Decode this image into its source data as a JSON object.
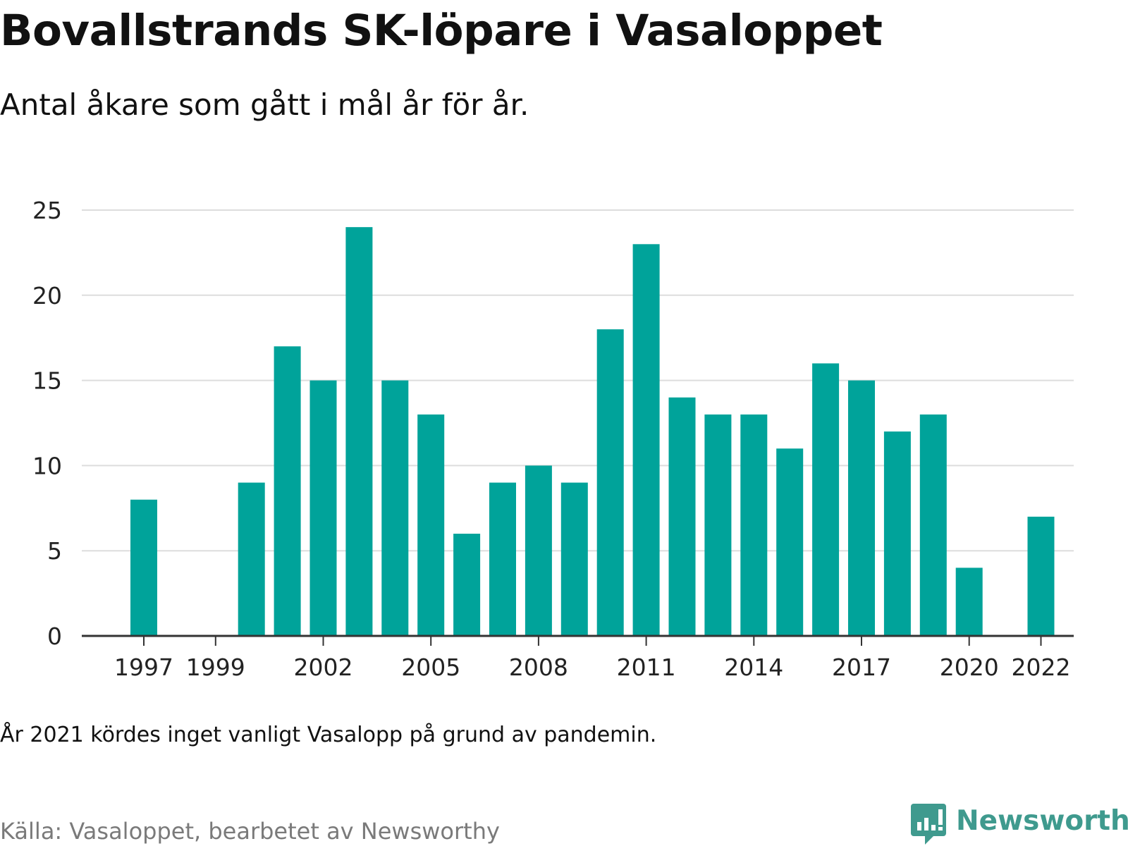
{
  "chart_data": {
    "type": "bar",
    "title": "Bovallstrands SK-löpare i Vasaloppet",
    "subtitle": "Antal åkare som gått i mål år för år.",
    "xlabel": "",
    "ylabel": "",
    "x": [
      1997,
      1998,
      1999,
      2000,
      2001,
      2002,
      2003,
      2004,
      2005,
      2006,
      2007,
      2008,
      2009,
      2010,
      2011,
      2012,
      2013,
      2014,
      2015,
      2016,
      2017,
      2018,
      2019,
      2020,
      2021,
      2022
    ],
    "values": [
      8,
      0,
      0,
      9,
      17,
      15,
      24,
      15,
      13,
      6,
      9,
      10,
      9,
      18,
      23,
      14,
      13,
      13,
      11,
      16,
      15,
      12,
      13,
      4,
      0,
      7
    ],
    "x_tick_labels": [
      "1997",
      "1999",
      "2002",
      "2005",
      "2008",
      "2011",
      "2014",
      "2017",
      "2020",
      "2022"
    ],
    "y_ticks": [
      0,
      5,
      10,
      15,
      20,
      25
    ],
    "ylim": [
      0,
      25
    ],
    "bar_color": "#00a39a",
    "grid": true,
    "legend": "none",
    "note": "År 2021 kördes inget vanligt Vasalopp på grund av pandemin.",
    "source": "Källa: Vasaloppet, bearbetet av Newsworthy"
  },
  "branding": {
    "name": "Newsworthy",
    "icon": "newsworthy-logo-icon",
    "color": "#3f9a8e"
  },
  "colors": {
    "grid": "#dddddd",
    "axis": "#333333"
  }
}
